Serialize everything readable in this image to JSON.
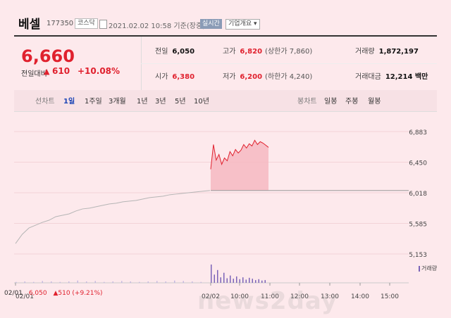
{
  "header": {
    "name": "베셀",
    "code": "177350",
    "market": "코스닥",
    "date": "2021.02.02 10:58 기준(장중)",
    "realtime_label": "실시간",
    "company_label": "기업개요 ▾"
  },
  "quote": {
    "price": "6,660",
    "change_label": "전일대비",
    "change_arrow": "▲",
    "change_value": "610",
    "change_pct": "+10.08%",
    "prev_label": "전일",
    "prev": "6,050",
    "open_label": "시가",
    "open": "6,380",
    "high_label": "고가",
    "high": "6,820",
    "upper_limit": "(상한가 7,860)",
    "low_label": "저가",
    "low": "6,200",
    "lower_limit": "(하한가 4,240)",
    "volume_label": "거래량",
    "volume": "1,872,197",
    "amount_label": "거래대금",
    "amount": "12,214 백만"
  },
  "tabs": {
    "line_label": "선차트",
    "line_items": [
      "1일",
      "1주일",
      "3개월",
      "1년",
      "3년",
      "5년",
      "10년"
    ],
    "active": "1일",
    "candle_label": "봉차트",
    "candle_items": [
      "일봉",
      "주봉",
      "월봉"
    ]
  },
  "chart": {
    "y_ticks": [
      "6,883",
      "6,450",
      "6,018",
      "5,585",
      "5,153"
    ],
    "x_ticks": [
      "02/01",
      "02/02",
      "10:00",
      "11:00",
      "12:00",
      "13:00",
      "14:00",
      "15:00"
    ],
    "volume_legend": "거래량",
    "footer_date": "02/01",
    "footer_price": "6,050",
    "footer_change": "▲510 (+9.21%)",
    "watermark": "news2day",
    "colors": {
      "rise": "#e0212e",
      "fill": "#f6b8c2",
      "volume": "#7a63b8",
      "prev_line": "#999999"
    }
  },
  "chart_data": {
    "type": "line",
    "ylim": [
      5153,
      6883
    ],
    "prev_close": 6050,
    "series": [
      {
        "values": [
          5300,
          5430,
          5520,
          5560,
          5600,
          5630,
          5680,
          5700,
          5720,
          5760,
          5790,
          5800,
          5820,
          5840,
          5860,
          5870,
          5890,
          5900,
          5910,
          5930,
          5950,
          5960,
          5970,
          5990,
          6000,
          6010,
          6020,
          6030,
          6040,
          6050
        ]
      },
      {
        "values": [
          6350,
          6700,
          6480,
          6560,
          6420,
          6510,
          6470,
          6600,
          6540,
          6630,
          6580,
          6620,
          6700,
          6650,
          6710,
          6680,
          6760,
          6700,
          6740,
          6720,
          6690,
          6660
        ]
      }
    ],
    "volume": [
      2,
      3,
      2,
      4,
      3,
      2,
      3,
      5,
      3,
      4,
      2,
      3,
      4,
      3,
      2,
      3,
      4,
      3,
      5,
      4,
      3,
      2,
      40,
      18,
      28,
      12,
      22,
      10,
      16,
      9,
      14,
      8,
      12,
      7,
      11,
      9,
      6,
      8,
      5,
      6
    ]
  }
}
